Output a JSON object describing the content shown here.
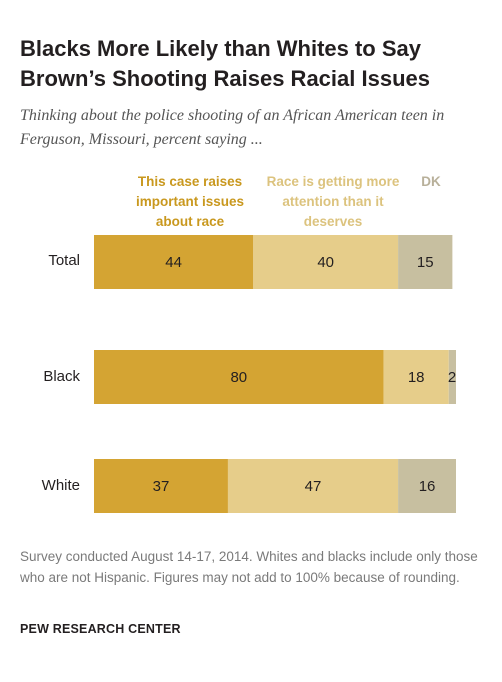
{
  "title": "Blacks More Likely than Whites to Say Brown’s Shooting Raises Racial Issues",
  "subtitle": "Thinking about the police shooting of an African American teen in Ferguson, Missouri, percent saying ...",
  "note": "Survey conducted August 14-17, 2014. Whites and blacks include only those who are not Hispanic. Figures may not add to 100% because of rounding.",
  "source": "PEW RESEARCH CENTER",
  "colors": {
    "series_1": "#d4a433",
    "series_2": "#e6cd8a",
    "series_3": "#c7bfa0",
    "legend_1": "#c9981e",
    "legend_2": "#dcc37e",
    "legend_3": "#b8b09a"
  },
  "chart_data": {
    "type": "bar",
    "orientation": "horizontal",
    "stacked": true,
    "title": "Blacks More Likely than Whites to Say Brown’s Shooting Raises Racial Issues",
    "subtitle": "Thinking about the police shooting of an African American teen in Ferguson, Missouri, percent saying ...",
    "categories": [
      "Total",
      "Black",
      "White"
    ],
    "series": [
      {
        "name": "This case raises important issues about race",
        "values": [
          44,
          80,
          37
        ]
      },
      {
        "name": "Race is getting more attention than it deserves",
        "values": [
          40,
          18,
          47
        ]
      },
      {
        "name": "DK",
        "values": [
          15,
          2,
          16
        ]
      }
    ],
    "legend_placement": "top",
    "grid": false,
    "xlim": [
      0,
      100
    ]
  }
}
